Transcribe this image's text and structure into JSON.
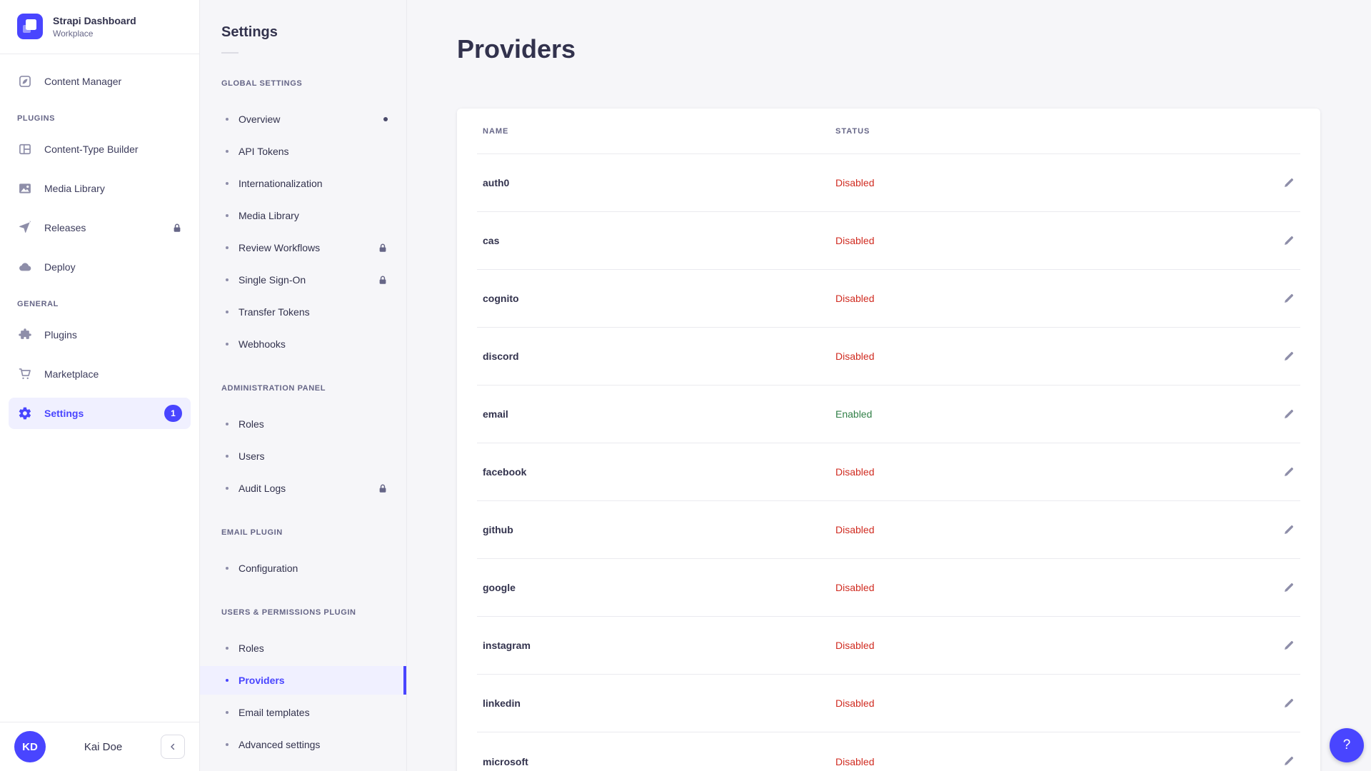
{
  "app": {
    "brand": {
      "title": "Strapi Dashboard",
      "subtitle": "Workplace",
      "logo_icon": "strapi-logo-icon"
    },
    "help_button_label": "?"
  },
  "sidebar": {
    "main_item": {
      "label": "Content Manager",
      "icon": "pen-square-icon"
    },
    "sections": [
      {
        "title": "PLUGINS",
        "items": [
          {
            "label": "Content-Type Builder",
            "icon": "layout-icon"
          },
          {
            "label": "Media Library",
            "icon": "image-icon"
          },
          {
            "label": "Releases",
            "icon": "paper-plane-icon",
            "locked": true
          },
          {
            "label": "Deploy",
            "icon": "cloud-icon"
          }
        ]
      },
      {
        "title": "GENERAL",
        "items": [
          {
            "label": "Plugins",
            "icon": "puzzle-icon"
          },
          {
            "label": "Marketplace",
            "icon": "cart-icon"
          },
          {
            "label": "Settings",
            "icon": "gear-icon",
            "active": true,
            "badge": "1"
          }
        ]
      }
    ],
    "footer": {
      "avatar_initials": "KD",
      "user_name": "Kai Doe",
      "collapse_icon": "chevron-left-icon"
    }
  },
  "subnav": {
    "title": "Settings",
    "groups": [
      {
        "title": "GLOBAL SETTINGS",
        "items": [
          {
            "label": "Overview",
            "notification_dot": true
          },
          {
            "label": "API Tokens"
          },
          {
            "label": "Internationalization"
          },
          {
            "label": "Media Library"
          },
          {
            "label": "Review Workflows",
            "locked": true
          },
          {
            "label": "Single Sign-On",
            "locked": true
          },
          {
            "label": "Transfer Tokens"
          },
          {
            "label": "Webhooks"
          }
        ]
      },
      {
        "title": "ADMINISTRATION PANEL",
        "items": [
          {
            "label": "Roles"
          },
          {
            "label": "Users"
          },
          {
            "label": "Audit Logs",
            "locked": true
          }
        ]
      },
      {
        "title": "EMAIL PLUGIN",
        "items": [
          {
            "label": "Configuration"
          }
        ]
      },
      {
        "title": "USERS & PERMISSIONS PLUGIN",
        "items": [
          {
            "label": "Roles"
          },
          {
            "label": "Providers",
            "active": true
          },
          {
            "label": "Email templates"
          },
          {
            "label": "Advanced settings"
          }
        ]
      }
    ]
  },
  "main": {
    "page_title": "Providers",
    "table": {
      "columns": [
        "NAME",
        "STATUS"
      ],
      "row_action_icon": "pencil-icon",
      "rows": [
        {
          "name": "auth0",
          "status": "Disabled"
        },
        {
          "name": "cas",
          "status": "Disabled"
        },
        {
          "name": "cognito",
          "status": "Disabled"
        },
        {
          "name": "discord",
          "status": "Disabled"
        },
        {
          "name": "email",
          "status": "Enabled"
        },
        {
          "name": "facebook",
          "status": "Disabled"
        },
        {
          "name": "github",
          "status": "Disabled"
        },
        {
          "name": "google",
          "status": "Disabled"
        },
        {
          "name": "instagram",
          "status": "Disabled"
        },
        {
          "name": "linkedin",
          "status": "Disabled"
        },
        {
          "name": "microsoft",
          "status": "Disabled"
        }
      ]
    }
  },
  "colors": {
    "primary": "#4945ff",
    "primary_active_bg": "#f0f0ff",
    "status_disabled": "#d02b20",
    "status_enabled": "#328048"
  }
}
